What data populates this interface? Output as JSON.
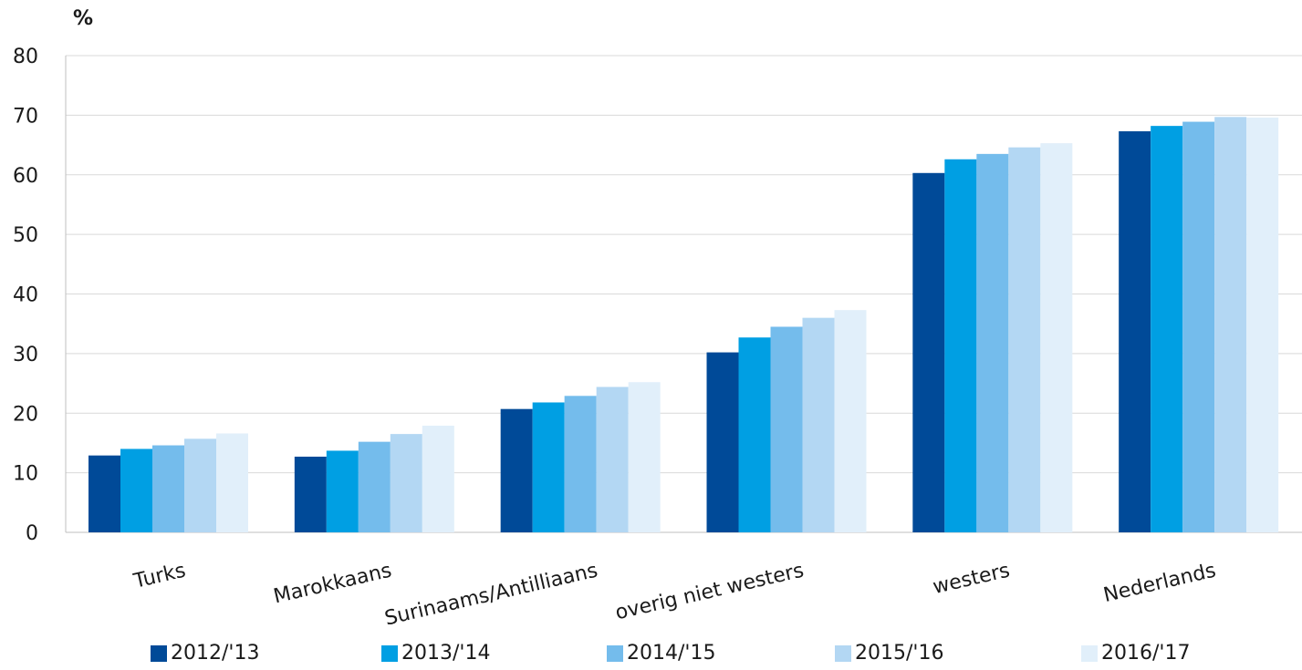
{
  "chart_data": {
    "type": "bar",
    "ylabel": "%",
    "ylim": [
      0,
      80
    ],
    "yticks": [
      "0",
      "10",
      "20",
      "30",
      "40",
      "50",
      "60",
      "70",
      "80"
    ],
    "grid": true,
    "legend_position": "bottom",
    "categories": [
      "Turks",
      "Marokkaans",
      "Surinaams/Antilliaans",
      "overig niet westers",
      "westers",
      "Nederlands"
    ],
    "series": [
      {
        "name": "2012/'13",
        "color": "#004a98",
        "values": [
          12.9,
          12.7,
          20.7,
          30.2,
          60.3,
          67.3
        ]
      },
      {
        "name": "2013/'14",
        "color": "#009fe3",
        "values": [
          14.0,
          13.7,
          21.8,
          32.7,
          62.6,
          68.2
        ]
      },
      {
        "name": "2014/'15",
        "color": "#74bcec",
        "values": [
          14.6,
          15.2,
          22.9,
          34.5,
          63.5,
          68.9
        ]
      },
      {
        "name": "2015/'16",
        "color": "#b3d7f3",
        "values": [
          15.7,
          16.5,
          24.4,
          36.0,
          64.6,
          69.7
        ]
      },
      {
        "name": "2016/'17",
        "color": "#e1effa",
        "values": [
          16.6,
          17.9,
          25.2,
          37.3,
          65.3,
          69.6
        ]
      }
    ]
  }
}
